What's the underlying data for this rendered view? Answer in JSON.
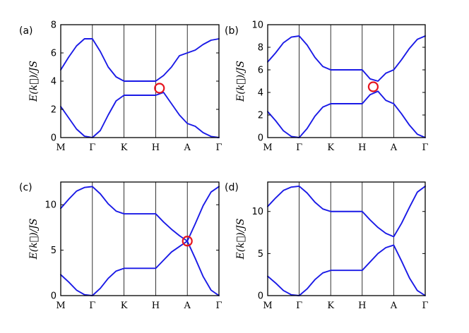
{
  "chart_data": [
    {
      "type": "line",
      "panel_label": "(a)",
      "ylabel": "E(k⃗)/JS",
      "xticks": [
        "M",
        "Γ",
        "K",
        "H",
        "A",
        "Γ"
      ],
      "ylim": [
        0,
        8
      ],
      "yticks": [
        0,
        2,
        4,
        6,
        8
      ],
      "series": [
        {
          "x": [
            0,
            0.25,
            0.5,
            0.75,
            1,
            1.25,
            1.5,
            1.75,
            2,
            2.25,
            2.5,
            2.75,
            3,
            3.25,
            3.5,
            3.75,
            4,
            4.25,
            4.5,
            4.75,
            5
          ],
          "y": [
            4.8,
            5.7,
            6.5,
            7.0,
            7.0,
            6.1,
            5.0,
            4.3,
            4.0,
            4.0,
            4.0,
            4.0,
            4.0,
            4.4,
            5.0,
            5.8,
            6.0,
            6.2,
            6.6,
            6.9,
            7.0
          ]
        },
        {
          "x": [
            0,
            0.25,
            0.5,
            0.75,
            1,
            1.25,
            1.5,
            1.75,
            2,
            2.25,
            2.5,
            2.75,
            3,
            3.25,
            3.5,
            3.75,
            4,
            4.25,
            4.5,
            4.75,
            5
          ],
          "y": [
            2.2,
            1.4,
            0.6,
            0.1,
            0.0,
            0.5,
            1.6,
            2.6,
            3.0,
            3.0,
            3.0,
            3.0,
            3.0,
            3.2,
            2.4,
            1.6,
            1.0,
            0.8,
            0.35,
            0.08,
            0.0
          ]
        }
      ],
      "markers": [
        {
          "x": 3.12,
          "y": 3.5
        }
      ]
    },
    {
      "type": "line",
      "panel_label": "(b)",
      "ylabel": "E(k⃗)/JS",
      "xticks": [
        "M",
        "Γ",
        "K",
        "H",
        "A",
        "Γ"
      ],
      "ylim": [
        0,
        10
      ],
      "yticks": [
        0,
        2,
        4,
        6,
        8,
        10
      ],
      "series": [
        {
          "x": [
            0,
            0.25,
            0.5,
            0.75,
            1,
            1.25,
            1.5,
            1.75,
            2,
            2.25,
            2.5,
            2.75,
            3,
            3.25,
            3.5,
            3.75,
            4,
            4.25,
            4.5,
            4.75,
            5
          ],
          "y": [
            6.7,
            7.5,
            8.4,
            8.9,
            9.0,
            8.2,
            7.1,
            6.3,
            6.0,
            6.0,
            6.0,
            6.0,
            6.0,
            5.2,
            5.0,
            5.7,
            6.0,
            6.9,
            7.9,
            8.7,
            9.0
          ]
        },
        {
          "x": [
            0,
            0.25,
            0.5,
            0.75,
            1,
            1.25,
            1.5,
            1.75,
            2,
            2.25,
            2.5,
            2.75,
            3,
            3.25,
            3.5,
            3.75,
            4,
            4.25,
            4.5,
            4.75,
            5
          ],
          "y": [
            2.3,
            1.5,
            0.6,
            0.1,
            0.0,
            0.8,
            1.9,
            2.7,
            3.0,
            3.0,
            3.0,
            3.0,
            3.0,
            3.8,
            4.1,
            3.3,
            3.0,
            2.1,
            1.1,
            0.3,
            0.0
          ]
        }
      ],
      "markers": [
        {
          "x": 3.35,
          "y": 4.5
        }
      ]
    },
    {
      "type": "line",
      "panel_label": "(c)",
      "ylabel": "E(k⃗)/JS",
      "xticks": [
        "M",
        "Γ",
        "K",
        "H",
        "A",
        "Γ"
      ],
      "ylim": [
        0,
        12.5
      ],
      "yticks": [
        0,
        5,
        10
      ],
      "series": [
        {
          "x": [
            0,
            0.25,
            0.5,
            0.75,
            1,
            1.25,
            1.5,
            1.75,
            2,
            2.25,
            2.5,
            2.75,
            3,
            3.25,
            3.5,
            3.75,
            4,
            4.25,
            4.5,
            4.75,
            5
          ],
          "y": [
            9.6,
            10.6,
            11.5,
            11.9,
            12.0,
            11.2,
            10.1,
            9.3,
            9.0,
            9.0,
            9.0,
            9.0,
            9.0,
            8.1,
            7.3,
            6.6,
            6.0,
            7.9,
            9.9,
            11.4,
            12.0
          ]
        },
        {
          "x": [
            0,
            0.25,
            0.5,
            0.75,
            1,
            1.25,
            1.5,
            1.75,
            2,
            2.25,
            2.5,
            2.75,
            3,
            3.25,
            3.5,
            3.75,
            4,
            4.25,
            4.5,
            4.75,
            5
          ],
          "y": [
            2.3,
            1.5,
            0.6,
            0.1,
            0.0,
            0.8,
            1.9,
            2.7,
            3.0,
            3.0,
            3.0,
            3.0,
            3.0,
            3.9,
            4.8,
            5.4,
            6.0,
            4.1,
            2.1,
            0.6,
            0.0
          ]
        }
      ],
      "markers": [
        {
          "x": 4.0,
          "y": 6.0
        }
      ]
    },
    {
      "type": "line",
      "panel_label": "(d)",
      "ylabel": "E(k⃗)/JS",
      "xticks": [
        "M",
        "Γ",
        "K",
        "H",
        "A",
        "Γ"
      ],
      "ylim": [
        0,
        13.5
      ],
      "yticks": [
        0,
        5,
        10
      ],
      "series": [
        {
          "x": [
            0,
            0.25,
            0.5,
            0.75,
            1,
            1.25,
            1.5,
            1.75,
            2,
            2.25,
            2.5,
            2.75,
            3,
            3.25,
            3.5,
            3.75,
            4,
            4.25,
            4.5,
            4.75,
            5
          ],
          "y": [
            10.6,
            11.6,
            12.5,
            12.9,
            13.0,
            12.2,
            11.1,
            10.3,
            10.0,
            10.0,
            10.0,
            10.0,
            10.0,
            9.0,
            8.1,
            7.4,
            7.0,
            8.6,
            10.5,
            12.3,
            13.0
          ]
        },
        {
          "x": [
            0,
            0.25,
            0.5,
            0.75,
            1,
            1.25,
            1.5,
            1.75,
            2,
            2.25,
            2.5,
            2.75,
            3,
            3.25,
            3.5,
            3.75,
            4,
            4.25,
            4.5,
            4.75,
            5
          ],
          "y": [
            2.3,
            1.5,
            0.6,
            0.1,
            0.0,
            0.8,
            1.9,
            2.7,
            3.0,
            3.0,
            3.0,
            3.0,
            3.0,
            4.0,
            5.0,
            5.7,
            6.0,
            4.1,
            2.1,
            0.6,
            0.0
          ]
        }
      ],
      "markers": []
    }
  ]
}
